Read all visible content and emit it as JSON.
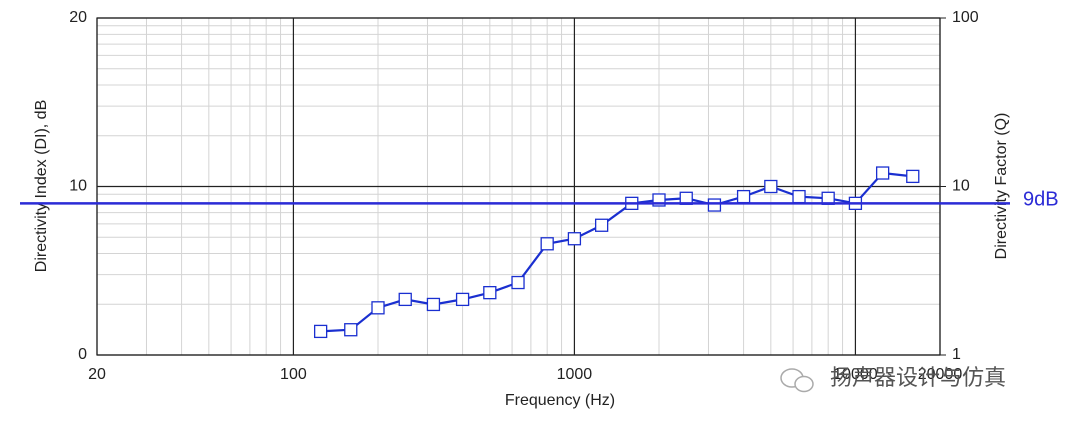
{
  "chart_data": {
    "type": "line",
    "x_label": "Frequency (Hz)",
    "y_label": "Directivity Index (DI), dB",
    "y2_label": "Directivity Factor (Q)",
    "x_log": true,
    "y2_log": true,
    "grid": true,
    "xlim": [
      20,
      20000
    ],
    "xticks": [
      20,
      100,
      1000,
      10000,
      20000
    ],
    "ylim": [
      0,
      20
    ],
    "yticks": [
      0,
      10,
      20
    ],
    "y2lim": [
      1,
      100
    ],
    "y2ticks": [
      1,
      10,
      100
    ],
    "x": [
      125,
      160,
      200,
      250,
      315,
      400,
      500,
      630,
      800,
      1000,
      1250,
      1600,
      2000,
      2500,
      3150,
      4000,
      5000,
      6300,
      8000,
      10000,
      12500,
      16000
    ],
    "series": [
      {
        "name": "Directivity Index",
        "color": "#1a2fd0",
        "values": [
          1.4,
          1.5,
          2.8,
          3.3,
          3.0,
          3.3,
          3.7,
          4.3,
          6.6,
          6.9,
          7.7,
          9.0,
          9.2,
          9.3,
          8.9,
          9.4,
          10.0,
          9.4,
          9.3,
          9.0,
          10.8,
          10.6
        ]
      }
    ],
    "reference_line": {
      "value": 9,
      "label": "9dB",
      "color": "#2b2bd6"
    },
    "watermark": "扬声器设计与仿真"
  }
}
